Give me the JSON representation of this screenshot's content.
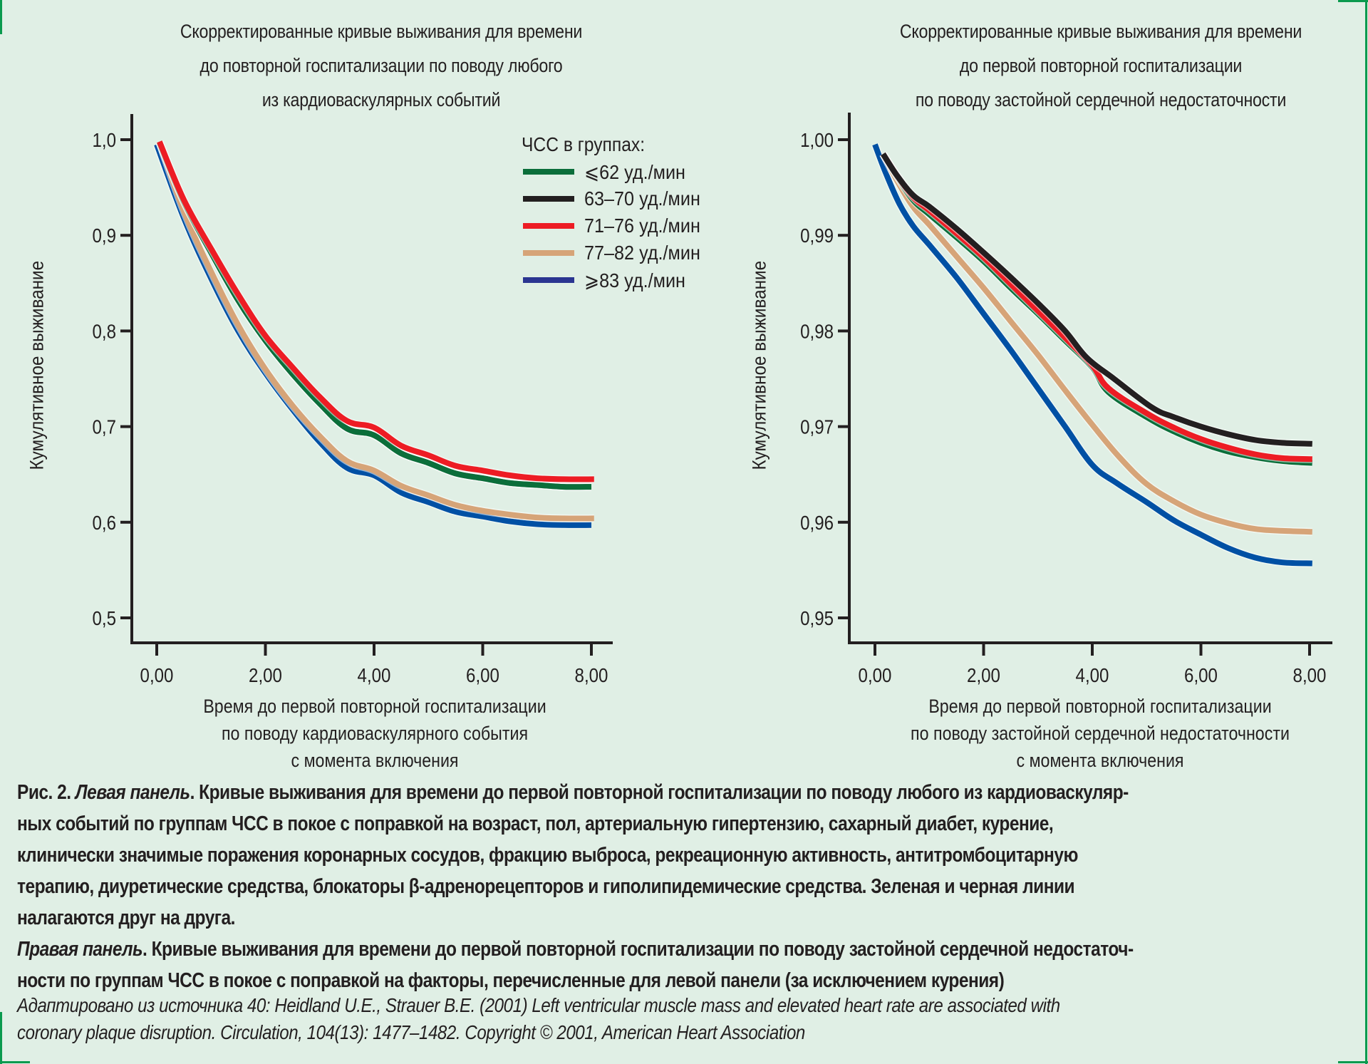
{
  "colors": {
    "green": "#0b6e3a",
    "black": "#231f20",
    "red": "#ed1c24",
    "tan": "#d6a478",
    "blue": "#0050a4",
    "legend_blue": "#2b3591",
    "axis": "#231f20",
    "frame": "#0a9a4e"
  },
  "legend": {
    "title": "ЧСС в группах:",
    "items": [
      {
        "key": "green",
        "label": "⩽62 уд./мин"
      },
      {
        "key": "black",
        "label": "63–70 уд./мин"
      },
      {
        "key": "red",
        "label": "71–76 уд./мин"
      },
      {
        "key": "tan",
        "label": "77–82 уд./мин"
      },
      {
        "key": "blue",
        "label": "⩾83 уд./мин"
      }
    ]
  },
  "chart_data": [
    {
      "type": "line",
      "title": "Скорректированные кривые выживания для времени до повторной госпитализации по поводу любого из кардиоваскулярных событий",
      "title_lines": [
        "Скорректированные кривые выживания для времени",
        "до повторной госпитализации по поводу любого",
        "из кардиоваскулярных событий"
      ],
      "xlabel_lines": [
        "Время до первой повторной госпитализации",
        "по поводу кардиоваскулярного события",
        "с момента включения"
      ],
      "ylabel": "Кумулятивное выживание",
      "xlim": [
        -0.45,
        8.4
      ],
      "ylim": [
        0.473,
        1.03
      ],
      "xticks": [
        0,
        2,
        4,
        6,
        8
      ],
      "xtick_labels": [
        "0,00",
        "2,00",
        "4,00",
        "6,00",
        "8,00"
      ],
      "yticks": [
        1.0,
        0.9,
        0.8,
        0.7,
        0.6,
        0.5
      ],
      "ytick_labels": [
        "1,0",
        "0,9",
        "0,8",
        "0,7",
        "0,6",
        "0,5"
      ],
      "grid": false,
      "legend_position": "top-right",
      "series": [
        {
          "name": "⩽62 уд./мин",
          "key": "green",
          "x": [
            0.05,
            0.5,
            1,
            1.5,
            2,
            2.5,
            3,
            3.5,
            4,
            4.5,
            5,
            5.5,
            6,
            6.5,
            7,
            7.5,
            8.0
          ],
          "y": [
            0.997,
            0.935,
            0.882,
            0.832,
            0.79,
            0.755,
            0.724,
            0.698,
            0.691,
            0.672,
            0.662,
            0.651,
            0.646,
            0.641,
            0.639,
            0.637,
            0.637
          ]
        },
        {
          "name": "63–70 уд./мин",
          "key": "black",
          "x": [
            0.05,
            0.5,
            1,
            1.5,
            2,
            2.5,
            3,
            3.5,
            4,
            4.5,
            5,
            5.5,
            6,
            6.5,
            7,
            7.5,
            8.0
          ],
          "y": [
            0.997,
            0.935,
            0.882,
            0.832,
            0.79,
            0.755,
            0.724,
            0.698,
            0.691,
            0.672,
            0.662,
            0.651,
            0.646,
            0.641,
            0.639,
            0.637,
            0.637
          ]
        },
        {
          "name": "71–76 уд./мин",
          "key": "red",
          "x": [
            0.05,
            0.5,
            1,
            1.5,
            2,
            2.5,
            3,
            3.5,
            4,
            4.5,
            5,
            5.5,
            6,
            6.5,
            7,
            7.5,
            8.05
          ],
          "y": [
            0.998,
            0.937,
            0.886,
            0.838,
            0.795,
            0.762,
            0.731,
            0.706,
            0.699,
            0.68,
            0.67,
            0.659,
            0.654,
            0.649,
            0.646,
            0.645,
            0.645
          ]
        },
        {
          "name": "77–82 уд./мин",
          "key": "tan",
          "x": [
            0.05,
            0.5,
            1,
            1.5,
            2,
            2.5,
            3,
            3.5,
            4,
            4.5,
            5,
            5.5,
            6,
            6.5,
            7,
            7.5,
            8.05
          ],
          "y": [
            0.997,
            0.925,
            0.862,
            0.806,
            0.76,
            0.722,
            0.69,
            0.664,
            0.654,
            0.638,
            0.628,
            0.618,
            0.612,
            0.608,
            0.605,
            0.604,
            0.604
          ]
        },
        {
          "name": "⩾83 уд./мин",
          "key": "blue",
          "x": [
            0.0,
            0.5,
            1,
            1.5,
            2,
            2.5,
            3,
            3.5,
            4,
            4.5,
            5,
            5.5,
            6,
            6.5,
            7,
            7.5,
            8.0
          ],
          "y": [
            0.995,
            0.918,
            0.855,
            0.8,
            0.756,
            0.718,
            0.684,
            0.657,
            0.649,
            0.631,
            0.621,
            0.611,
            0.606,
            0.601,
            0.598,
            0.597,
            0.597
          ]
        }
      ]
    },
    {
      "type": "line",
      "title": "Скорректированные кривые выживания для времени до первой повторной госпитализации по поводу застойной сердечной недостаточности",
      "title_lines": [
        "Скорректированные кривые выживания для времени",
        "до первой повторной госпитализации",
        "по поводу застойной сердечной недостаточности"
      ],
      "xlabel_lines": [
        "Время до первой повторной госпитализации",
        "по поводу застойной сердечной недостаточности",
        "с момента включения"
      ],
      "ylabel": "Кумулятивное выживание",
      "xlim": [
        -0.45,
        8.4
      ],
      "ylim": [
        0.9473,
        1.003
      ],
      "xticks": [
        0,
        2,
        4,
        6,
        8
      ],
      "xtick_labels": [
        "0,00",
        "2,00",
        "4,00",
        "6,00",
        "8,00"
      ],
      "yticks": [
        1.0,
        0.99,
        0.98,
        0.97,
        0.96,
        0.95
      ],
      "ytick_labels": [
        "1,00",
        "0,99",
        "0,98",
        "0,97",
        "0,96",
        "0,95"
      ],
      "grid": false,
      "series": [
        {
          "name": "⩽62 уд./мин",
          "key": "green",
          "x": [
            0.15,
            0.4,
            0.7,
            1.0,
            1.5,
            2.0,
            2.5,
            3.0,
            3.5,
            4.0,
            4.3,
            5.0,
            5.5,
            6.0,
            6.5,
            7.0,
            7.5,
            8.05
          ],
          "y": [
            0.9985,
            0.9962,
            0.9937,
            0.9922,
            0.9898,
            0.9873,
            0.9845,
            0.9818,
            0.979,
            0.9762,
            0.9736,
            0.971,
            0.9695,
            0.9683,
            0.9674,
            0.9668,
            0.9664,
            0.9662
          ]
        },
        {
          "name": "63–70 уд./мин",
          "key": "black",
          "x": [
            0.15,
            0.4,
            0.7,
            1.0,
            1.5,
            2.0,
            2.5,
            3.0,
            3.5,
            3.9,
            4.4,
            5.1,
            5.5,
            6.0,
            6.5,
            7.0,
            7.5,
            8.05
          ],
          "y": [
            0.9985,
            0.9963,
            0.9942,
            0.993,
            0.9907,
            0.9882,
            0.9856,
            0.9829,
            0.98,
            0.9772,
            0.975,
            0.972,
            0.971,
            0.97,
            0.9692,
            0.9686,
            0.9683,
            0.9682
          ]
        },
        {
          "name": "71–76 уд./мин",
          "key": "red",
          "x": [
            0.15,
            0.4,
            0.7,
            1.0,
            1.5,
            2.0,
            2.5,
            3.0,
            3.5,
            4.0,
            4.3,
            5.0,
            5.5,
            6.0,
            6.5,
            7.0,
            7.5,
            8.05
          ],
          "y": [
            0.9985,
            0.9963,
            0.994,
            0.9926,
            0.9902,
            0.9877,
            0.9849,
            0.9821,
            0.9793,
            0.9764,
            0.974,
            0.9714,
            0.9699,
            0.9687,
            0.9678,
            0.9671,
            0.9667,
            0.9666
          ]
        },
        {
          "name": "77–82 уд./мин",
          "key": "tan",
          "x": [
            0.15,
            0.4,
            0.7,
            1.0,
            1.5,
            2.0,
            2.5,
            3.0,
            3.5,
            4.0,
            4.5,
            5.0,
            5.5,
            6.0,
            6.5,
            7.0,
            7.5,
            8.05
          ],
          "y": [
            0.9985,
            0.9958,
            0.993,
            0.9911,
            0.9878,
            0.9845,
            0.981,
            0.9775,
            0.9738,
            0.9702,
            0.9668,
            0.964,
            0.9622,
            0.9608,
            0.9599,
            0.9593,
            0.9591,
            0.959
          ]
        },
        {
          "name": "⩾83 уд./мин",
          "key": "blue",
          "x": [
            0.0,
            0.2,
            0.45,
            0.7,
            1.0,
            1.5,
            2.0,
            2.5,
            3.0,
            3.5,
            4.0,
            4.45,
            5.0,
            5.5,
            6.0,
            6.5,
            7.0,
            7.5,
            8.05
          ],
          "y": [
            0.9995,
            0.9965,
            0.9933,
            0.991,
            0.989,
            0.9856,
            0.9818,
            0.978,
            0.974,
            0.97,
            0.966,
            0.9641,
            0.9621,
            0.9602,
            0.9587,
            0.9573,
            0.9563,
            0.9558,
            0.9557
          ]
        }
      ]
    }
  ],
  "caption": {
    "lines": [
      {
        "prefix": "Рис. 2. ",
        "italic": "Левая панель",
        "text": ". Кривые выживания для времени до первой повторной госпитализации по поводу любого из кардиоваскуляр-"
      },
      {
        "prefix": "",
        "italic": "",
        "text": "ных событий по группам ЧСС в покое с поправкой на возраст, пол, артериальную гипертензию, сахарный диабет, курение,"
      },
      {
        "prefix": "",
        "italic": "",
        "text": "клинически значимые поражения коронарных сосудов, фракцию выброса, рекреационную активность, антитромбоцитарную"
      },
      {
        "prefix": "",
        "italic": "",
        "text": "терапию, диуретические средства, блокаторы β-адренорецепторов и гиполипидемические средства. Зеленая и черная линии"
      },
      {
        "prefix": "",
        "italic": "",
        "text": "налагаются друг на друга."
      },
      {
        "prefix": "",
        "italic": "Правая панель",
        "text": ". Кривые выживания для времени до первой повторной госпитализации по поводу застойной сердечной недостаточ-"
      },
      {
        "prefix": "",
        "italic": "",
        "text": "ности по группам ЧСС в покое с поправкой на факторы, перечисленные для левой панели (за исключением курения)"
      }
    ]
  },
  "source": {
    "lines": [
      "Адаптировано из источника 40: Heidland U.E., Strauer B.E. (2001) Left ventricular muscle mass and elevated heart rate are associated with",
      "coronary plaque disruption. Circulation, 104(13): 1477–1482. Copyright © 2001, American Heart Association"
    ]
  }
}
